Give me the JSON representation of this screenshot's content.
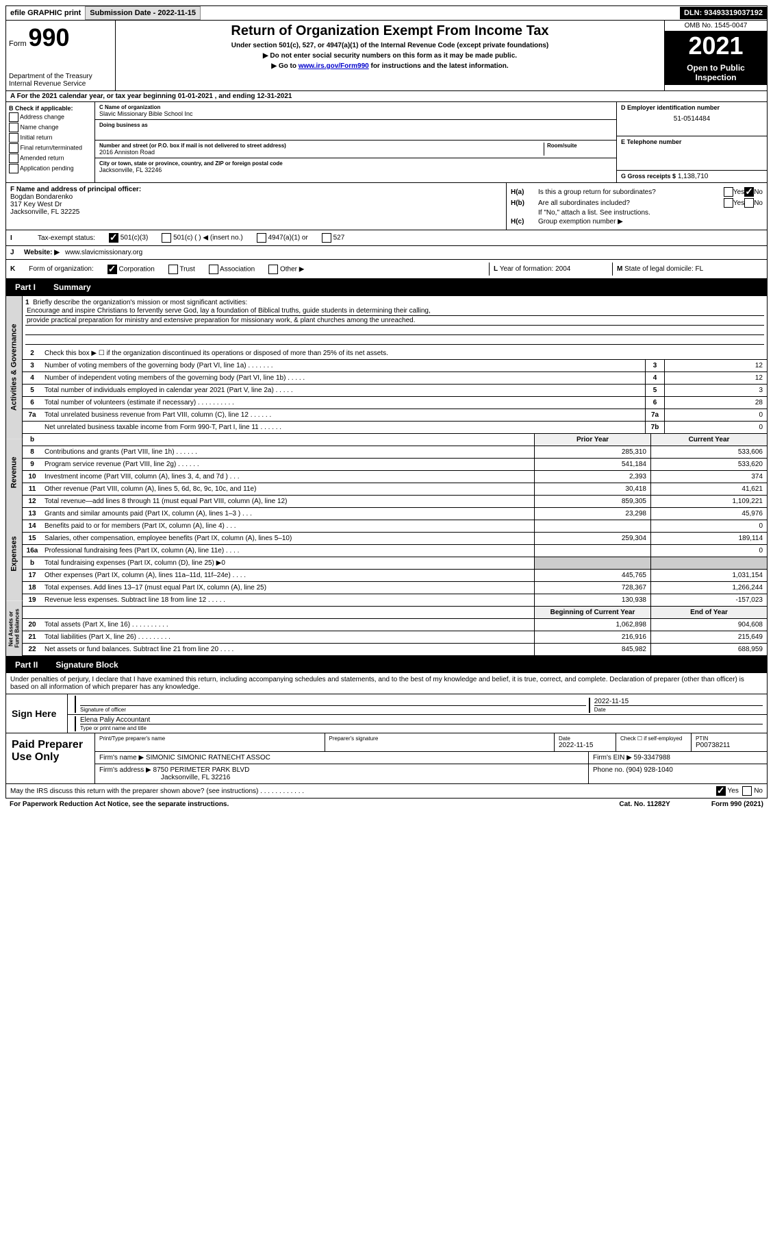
{
  "topbar": {
    "efile": "efile GRAPHIC print",
    "sub_label": "Submission Date - 2022-11-15",
    "dln": "DLN: 93493319037192"
  },
  "header": {
    "form_word": "Form",
    "form_num": "990",
    "dept": "Department of the Treasury Internal Revenue Service",
    "title": "Return of Organization Exempt From Income Tax",
    "sub1": "Under section 501(c), 527, or 4947(a)(1) of the Internal Revenue Code (except private foundations)",
    "sub2": "▶ Do not enter social security numbers on this form as it may be made public.",
    "sub3_a": "▶ Go to ",
    "sub3_link": "www.irs.gov/Form990",
    "sub3_b": " for instructions and the latest information.",
    "omb": "OMB No. 1545-0047",
    "year": "2021",
    "open": "Open to Public Inspection"
  },
  "row_a": "A For the 2021 calendar year, or tax year beginning 01-01-2021    , and ending 12-31-2021",
  "col_b": {
    "title": "B Check if applicable:",
    "opts": [
      "Address change",
      "Name change",
      "Initial return",
      "Final return/terminated",
      "Amended return",
      "Application pending"
    ]
  },
  "col_c": {
    "name_lbl": "C Name of organization",
    "name": "Slavic Missionary Bible School Inc",
    "dba_lbl": "Doing business as",
    "dba": "",
    "addr_lbl": "Number and street (or P.O. box if mail is not delivered to street address)",
    "room_lbl": "Room/suite",
    "addr": "2016 Anniston Road",
    "city_lbl": "City or town, state or province, country, and ZIP or foreign postal code",
    "city": "Jacksonville, FL  32246"
  },
  "col_d": {
    "ein_lbl": "D Employer identification number",
    "ein": "51-0514484",
    "tel_lbl": "E Telephone number",
    "tel": "",
    "gross_lbl": "G Gross receipts $",
    "gross": "1,138,710"
  },
  "col_f": {
    "lbl": "F Name and address of principal officer:",
    "name": "Bogdan Bondarenko",
    "addr1": "317 Key West Dr",
    "addr2": "Jacksonville, FL  32225"
  },
  "col_h": {
    "ha_lbl": "H(a)",
    "ha_txt": "Is this a group return for subordinates?",
    "hb_lbl": "H(b)",
    "hb_txt": "Are all subordinates included?",
    "hb_note": "If \"No,\" attach a list. See instructions.",
    "hc_lbl": "H(c)",
    "hc_txt": "Group exemption number ▶",
    "yes": "Yes",
    "no": "No"
  },
  "row_i": {
    "lbl": "I",
    "txt": "Tax-exempt status:",
    "o1": "501(c)(3)",
    "o2": "501(c) (   ) ◀ (insert no.)",
    "o3": "4947(a)(1) or",
    "o4": "527"
  },
  "row_j": {
    "lbl": "J",
    "txt": "Website: ▶",
    "val": "www.slavicmissionary.org"
  },
  "row_k": {
    "lbl": "K",
    "txt": "Form of organization:",
    "o1": "Corporation",
    "o2": "Trust",
    "o3": "Association",
    "o4": "Other ▶",
    "l_lbl": "L",
    "l_txt": "Year of formation:",
    "l_val": "2004",
    "m_lbl": "M",
    "m_txt": "State of legal domicile:",
    "m_val": "FL"
  },
  "part1": {
    "label": "Part I",
    "title": "Summary"
  },
  "mission": {
    "num": "1",
    "prompt": "Briefly describe the organization's mission or most significant activities:",
    "line1": "Encourage and inspire Christians to fervently serve God, lay a foundation of Biblical truths, guide students in determining their calling,",
    "line2": "provide practical preparation for ministry and extensive preparation for missionary work, & plant churches among the unreached."
  },
  "vlabels": {
    "gov": "Activities & Governance",
    "rev": "Revenue",
    "exp": "Expenses",
    "net": "Net Assets or Fund Balances"
  },
  "lines_gov": [
    {
      "n": "2",
      "d": "Check this box ▶ ☐  if the organization discontinued its operations or disposed of more than 25% of its net assets."
    },
    {
      "n": "3",
      "d": "Number of voting members of the governing body (Part VI, line 1a)  .    .    .    .    .    .    .",
      "b": "3",
      "v": "12"
    },
    {
      "n": "4",
      "d": "Number of independent voting members of the governing body (Part VI, line 1b)  .    .    .    .    .",
      "b": "4",
      "v": "12"
    },
    {
      "n": "5",
      "d": "Total number of individuals employed in calendar year 2021 (Part V, line 2a)  .    .    .    .    .",
      "b": "5",
      "v": "3"
    },
    {
      "n": "6",
      "d": "Total number of volunteers (estimate if necessary)    .    .    .    .    .    .    .    .    .    .",
      "b": "6",
      "v": "28"
    },
    {
      "n": "7a",
      "d": "Total unrelated business revenue from Part VIII, column (C), line 12   .    .    .    .    .    .",
      "b": "7a",
      "v": "0"
    },
    {
      "n": "",
      "d": "Net unrelated business taxable income from Form 990-T, Part I, line 11  .    .    .    .    .    .",
      "b": "7b",
      "v": "0"
    }
  ],
  "col_headers": {
    "b": "b",
    "prior": "Prior Year",
    "curr": "Current Year"
  },
  "lines_rev": [
    {
      "n": "8",
      "d": "Contributions and grants (Part VIII, line 1h)    .    .    .    .    .    .",
      "p": "285,310",
      "c": "533,606"
    },
    {
      "n": "9",
      "d": "Program service revenue (Part VIII, line 2g)    .    .    .    .    .    .",
      "p": "541,184",
      "c": "533,620"
    },
    {
      "n": "10",
      "d": "Investment income (Part VIII, column (A), lines 3, 4, and 7d )   .    .    .",
      "p": "2,393",
      "c": "374"
    },
    {
      "n": "11",
      "d": "Other revenue (Part VIII, column (A), lines 5, 6d, 8c, 9c, 10c, and 11e)",
      "p": "30,418",
      "c": "41,621"
    },
    {
      "n": "12",
      "d": "Total revenue—add lines 8 through 11 (must equal Part VIII, column (A), line 12)",
      "p": "859,305",
      "c": "1,109,221"
    }
  ],
  "lines_exp": [
    {
      "n": "13",
      "d": "Grants and similar amounts paid (Part IX, column (A), lines 1–3 )   .    .    .",
      "p": "23,298",
      "c": "45,976"
    },
    {
      "n": "14",
      "d": "Benefits paid to or for members (Part IX, column (A), line 4)   .    .    .",
      "p": "",
      "c": "0"
    },
    {
      "n": "15",
      "d": "Salaries, other compensation, employee benefits (Part IX, column (A), lines 5–10)",
      "p": "259,304",
      "c": "189,114"
    },
    {
      "n": "16a",
      "d": "Professional fundraising fees (Part IX, column (A), line 11e)   .    .    .    .",
      "p": "",
      "c": "0"
    },
    {
      "n": "b",
      "d": "Total fundraising expenses (Part IX, column (D), line 25) ▶0",
      "shaded": true
    },
    {
      "n": "17",
      "d": "Other expenses (Part IX, column (A), lines 11a–11d, 11f–24e)   .    .    .    .",
      "p": "445,765",
      "c": "1,031,154"
    },
    {
      "n": "18",
      "d": "Total expenses. Add lines 13–17 (must equal Part IX, column (A), line 25)",
      "p": "728,367",
      "c": "1,266,244"
    },
    {
      "n": "19",
      "d": "Revenue less expenses. Subtract line 18 from line 12   .    .    .    .    .",
      "p": "130,938",
      "c": "-157,023"
    }
  ],
  "net_headers": {
    "prior": "Beginning of Current Year",
    "curr": "End of Year"
  },
  "lines_net": [
    {
      "n": "20",
      "d": "Total assets (Part X, line 16)   .    .    .    .    .    .    .    .    .    .",
      "p": "1,062,898",
      "c": "904,608"
    },
    {
      "n": "21",
      "d": "Total liabilities (Part X, line 26)   .    .    .    .    .    .    .    .    .",
      "p": "216,916",
      "c": "215,649"
    },
    {
      "n": "22",
      "d": "Net assets or fund balances. Subtract line 21 from line 20   .    .    .    .",
      "p": "845,982",
      "c": "688,959"
    }
  ],
  "part2": {
    "label": "Part II",
    "title": "Signature Block"
  },
  "sig": {
    "decl": "Under penalties of perjury, I declare that I have examined this return, including accompanying schedules and statements, and to the best of my knowledge and belief, it is true, correct, and complete. Declaration of preparer (other than officer) is based on all information of which preparer has any knowledge.",
    "sign_here": "Sign Here",
    "sig_officer": "Signature of officer",
    "date_lbl": "Date",
    "date_val": "2022-11-15",
    "name_val": "Elena Paliy  Accountant",
    "name_lbl": "Type or print name and title"
  },
  "paid": {
    "title": "Paid Preparer Use Only",
    "h1": "Print/Type preparer's name",
    "h2": "Preparer's signature",
    "h3_lbl": "Date",
    "h3_val": "2022-11-15",
    "h4": "Check ☐ if self-employed",
    "h5_lbl": "PTIN",
    "h5_val": "P00738211",
    "firm_name_lbl": "Firm's name     ▶",
    "firm_name": "SIMONIC SIMONIC RATNECHT ASSOC",
    "firm_ein_lbl": "Firm's EIN ▶",
    "firm_ein": "59-3347988",
    "firm_addr_lbl": "Firm's address ▶",
    "firm_addr1": "8750 PERIMETER PARK BLVD",
    "firm_addr2": "Jacksonville, FL  32216",
    "phone_lbl": "Phone no.",
    "phone": "(904) 928-1040"
  },
  "footer": {
    "discuss": "May the IRS discuss this return with the preparer shown above? (see instructions)   .    .    .    .    .    .    .    .    .    .    .    .",
    "yes": "Yes",
    "no": "No",
    "paperwork": "For Paperwork Reduction Act Notice, see the separate instructions.",
    "cat": "Cat. No. 11282Y",
    "form": "Form 990 (2021)"
  }
}
